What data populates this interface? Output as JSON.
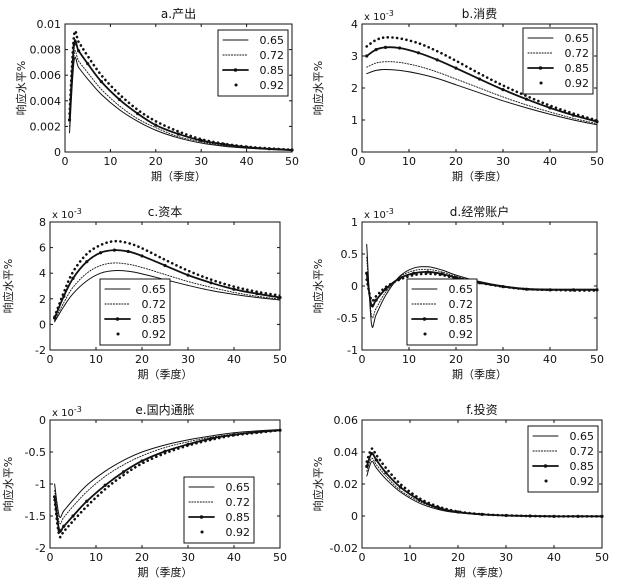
{
  "chart_data": [
    {
      "type": "line",
      "title": "a.产出",
      "xlabel": "期（季度）",
      "ylabel": "响应水平%",
      "exponent": "",
      "xlim": [
        0,
        50
      ],
      "ylim": [
        0,
        0.01
      ],
      "xticks": [
        0,
        10,
        20,
        30,
        40,
        50
      ],
      "yticks": [
        0,
        0.002,
        0.004,
        0.006,
        0.008,
        0.01
      ],
      "ytick_labels": [
        "0",
        "0.002",
        "0.004",
        "0.006",
        "0.008",
        "0.01"
      ],
      "legend": "top-right",
      "series": [
        {
          "name": "0.65",
          "style": "solid",
          "x": [
            1,
            2,
            3,
            5,
            8,
            12,
            16,
            20,
            25,
            30,
            35,
            40,
            45,
            50
          ],
          "y": [
            0.0015,
            0.0071,
            0.0066,
            0.0057,
            0.0045,
            0.0033,
            0.0024,
            0.0017,
            0.0011,
            0.0007,
            0.00045,
            0.0003,
            0.0002,
            0.00012
          ]
        },
        {
          "name": "0.72",
          "style": "dotted",
          "x": [
            1,
            2,
            3,
            5,
            8,
            12,
            16,
            20,
            25,
            30,
            35,
            40,
            45,
            50
          ],
          "y": [
            0.002,
            0.0076,
            0.0071,
            0.0062,
            0.0049,
            0.0036,
            0.0026,
            0.0019,
            0.0012,
            0.0008,
            0.0005,
            0.00033,
            0.00022,
            0.00014
          ]
        },
        {
          "name": "0.85",
          "style": "marker",
          "x": [
            1,
            2,
            3,
            5,
            8,
            12,
            16,
            20,
            25,
            30,
            35,
            40,
            45,
            50
          ],
          "y": [
            0.0025,
            0.0084,
            0.0079,
            0.0069,
            0.0055,
            0.0041,
            0.003,
            0.0021,
            0.0014,
            0.0009,
            0.0006,
            0.00038,
            0.00025,
            0.00016
          ]
        },
        {
          "name": "0.92",
          "style": "dots",
          "x": [
            1,
            2,
            3,
            5,
            8,
            12,
            16,
            20,
            25,
            30,
            35,
            40,
            45,
            50
          ],
          "y": [
            0.003,
            0.0091,
            0.0086,
            0.0075,
            0.006,
            0.0045,
            0.0033,
            0.0024,
            0.0016,
            0.001,
            0.00065,
            0.00042,
            0.00028,
            0.00018
          ]
        }
      ]
    },
    {
      "type": "line",
      "title": "b.消费",
      "xlabel": "期（季度）",
      "ylabel": "响应水平%",
      "exponent": "x 10",
      "exponent_power": "-3",
      "xlim": [
        0,
        50
      ],
      "ylim": [
        0,
        4
      ],
      "xticks": [
        0,
        10,
        20,
        30,
        40,
        50
      ],
      "yticks": [
        0,
        1,
        2,
        3,
        4
      ],
      "ytick_labels": [
        "0",
        "1",
        "2",
        "3",
        "4"
      ],
      "legend": "top-right",
      "series": [
        {
          "name": "0.65",
          "style": "solid",
          "x": [
            1,
            3,
            5,
            8,
            12,
            16,
            20,
            25,
            30,
            35,
            40,
            45,
            50
          ],
          "y": [
            2.45,
            2.55,
            2.58,
            2.55,
            2.45,
            2.3,
            2.1,
            1.85,
            1.6,
            1.38,
            1.18,
            1.0,
            0.85
          ]
        },
        {
          "name": "0.72",
          "style": "dotted",
          "x": [
            1,
            3,
            5,
            8,
            12,
            16,
            20,
            25,
            30,
            35,
            40,
            45,
            50
          ],
          "y": [
            2.65,
            2.78,
            2.82,
            2.8,
            2.68,
            2.5,
            2.28,
            2.0,
            1.72,
            1.47,
            1.25,
            1.05,
            0.89
          ]
        },
        {
          "name": "0.85",
          "style": "marker",
          "x": [
            1,
            3,
            5,
            8,
            12,
            16,
            20,
            25,
            30,
            35,
            40,
            45,
            50
          ],
          "y": [
            3.0,
            3.2,
            3.27,
            3.25,
            3.1,
            2.88,
            2.62,
            2.28,
            1.95,
            1.65,
            1.38,
            1.15,
            0.95
          ]
        },
        {
          "name": "0.92",
          "style": "dots",
          "x": [
            1,
            3,
            5,
            8,
            12,
            16,
            20,
            25,
            30,
            35,
            40,
            45,
            50
          ],
          "y": [
            3.3,
            3.5,
            3.58,
            3.55,
            3.4,
            3.15,
            2.85,
            2.45,
            2.08,
            1.75,
            1.45,
            1.2,
            0.99
          ]
        }
      ]
    },
    {
      "type": "line",
      "title": "c.资本",
      "xlabel": "期（季度）",
      "ylabel": "响应水平%",
      "exponent": "x 10",
      "exponent_power": "-3",
      "xlim": [
        0,
        50
      ],
      "ylim": [
        -2,
        8
      ],
      "xticks": [
        0,
        10,
        20,
        30,
        40,
        50
      ],
      "yticks": [
        -2,
        0,
        2,
        4,
        6,
        8
      ],
      "ytick_labels": [
        "-2",
        "0",
        "2",
        "4",
        "6",
        "8"
      ],
      "legend": "bottom-left",
      "series": [
        {
          "name": "0.65",
          "style": "solid",
          "x": [
            1,
            3,
            5,
            8,
            11,
            14,
            17,
            20,
            25,
            30,
            35,
            40,
            45,
            50
          ],
          "y": [
            0.2,
            1.4,
            2.4,
            3.4,
            4.0,
            4.2,
            4.15,
            3.95,
            3.5,
            3.05,
            2.65,
            2.35,
            2.1,
            1.9
          ]
        },
        {
          "name": "0.72",
          "style": "dotted",
          "x": [
            1,
            3,
            5,
            8,
            11,
            14,
            17,
            20,
            25,
            30,
            35,
            40,
            45,
            50
          ],
          "y": [
            0.3,
            1.7,
            2.9,
            4.0,
            4.6,
            4.8,
            4.7,
            4.45,
            3.9,
            3.35,
            2.9,
            2.5,
            2.2,
            1.97
          ]
        },
        {
          "name": "0.85",
          "style": "marker",
          "x": [
            1,
            3,
            5,
            8,
            11,
            14,
            17,
            20,
            25,
            30,
            35,
            40,
            45,
            50
          ],
          "y": [
            0.5,
            2.2,
            3.6,
            4.9,
            5.6,
            5.8,
            5.7,
            5.35,
            4.6,
            3.85,
            3.25,
            2.75,
            2.4,
            2.1
          ]
        },
        {
          "name": "0.92",
          "style": "dots",
          "x": [
            1,
            3,
            5,
            8,
            11,
            14,
            17,
            20,
            25,
            30,
            35,
            40,
            45,
            50
          ],
          "y": [
            0.6,
            2.5,
            4.1,
            5.5,
            6.2,
            6.5,
            6.35,
            5.95,
            5.05,
            4.2,
            3.5,
            2.95,
            2.55,
            2.25
          ]
        }
      ]
    },
    {
      "type": "line",
      "title": "d.经常账户",
      "xlabel": "期（季度）",
      "ylabel": "响应水平%",
      "exponent": "x 10",
      "exponent_power": "-3",
      "xlim": [
        0,
        50
      ],
      "ylim": [
        -1,
        1
      ],
      "xticks": [
        0,
        10,
        20,
        30,
        40,
        50
      ],
      "yticks": [
        -1,
        -0.5,
        0,
        0.5,
        1
      ],
      "ytick_labels": [
        "-1",
        "-0.5",
        "0",
        "0.5",
        "1"
      ],
      "legend": "bottom-left",
      "series": [
        {
          "name": "0.65",
          "style": "solid",
          "x": [
            1,
            2,
            3,
            5,
            8,
            11,
            14,
            17,
            20,
            25,
            30,
            35,
            40,
            45,
            50
          ],
          "y": [
            0.65,
            -0.58,
            -0.45,
            -0.15,
            0.15,
            0.28,
            0.3,
            0.25,
            0.17,
            0.07,
            0.0,
            -0.04,
            -0.05,
            -0.05,
            -0.05
          ]
        },
        {
          "name": "0.72",
          "style": "dotted",
          "x": [
            1,
            2,
            3,
            5,
            8,
            11,
            14,
            17,
            20,
            25,
            30,
            35,
            40,
            45,
            50
          ],
          "y": [
            0.45,
            -0.45,
            -0.35,
            -0.1,
            0.14,
            0.24,
            0.26,
            0.22,
            0.15,
            0.06,
            0.0,
            -0.04,
            -0.05,
            -0.05,
            -0.05
          ]
        },
        {
          "name": "0.85",
          "style": "marker",
          "x": [
            1,
            2,
            3,
            5,
            8,
            11,
            14,
            17,
            20,
            25,
            30,
            35,
            40,
            45,
            50
          ],
          "y": [
            0.2,
            -0.3,
            -0.22,
            -0.05,
            0.12,
            0.2,
            0.22,
            0.19,
            0.13,
            0.05,
            -0.01,
            -0.05,
            -0.06,
            -0.06,
            -0.06
          ]
        },
        {
          "name": "0.92",
          "style": "dots",
          "x": [
            1,
            2,
            3,
            5,
            8,
            11,
            14,
            17,
            20,
            25,
            30,
            35,
            40,
            45,
            50
          ],
          "y": [
            0.1,
            -0.22,
            -0.16,
            -0.02,
            0.1,
            0.17,
            0.19,
            0.17,
            0.12,
            0.05,
            -0.01,
            -0.05,
            -0.06,
            -0.07,
            -0.07
          ]
        }
      ]
    },
    {
      "type": "line",
      "title": "e.国内通胀",
      "xlabel": "期（季度）",
      "ylabel": "响应水平%",
      "exponent": "x 10",
      "exponent_power": "-3",
      "xlim": [
        0,
        50
      ],
      "ylim": [
        -2,
        0
      ],
      "xticks": [
        0,
        10,
        20,
        30,
        40,
        50
      ],
      "yticks": [
        -2,
        -1.5,
        -1,
        -0.5,
        0
      ],
      "ytick_labels": [
        "-2",
        "-1.5",
        "-1",
        "-0.5",
        "0"
      ],
      "legend": "bottom-right",
      "series": [
        {
          "name": "0.65",
          "style": "solid",
          "x": [
            1,
            2,
            3,
            5,
            8,
            12,
            16,
            20,
            25,
            30,
            35,
            40,
            45,
            50
          ],
          "y": [
            -1.0,
            -1.5,
            -1.42,
            -1.25,
            -1.02,
            -0.8,
            -0.63,
            -0.5,
            -0.39,
            -0.31,
            -0.25,
            -0.2,
            -0.17,
            -0.15
          ]
        },
        {
          "name": "0.72",
          "style": "dotted",
          "x": [
            1,
            2,
            3,
            5,
            8,
            12,
            16,
            20,
            25,
            30,
            35,
            40,
            45,
            50
          ],
          "y": [
            -1.1,
            -1.6,
            -1.52,
            -1.35,
            -1.12,
            -0.88,
            -0.7,
            -0.56,
            -0.43,
            -0.34,
            -0.27,
            -0.22,
            -0.18,
            -0.15
          ]
        },
        {
          "name": "0.85",
          "style": "marker",
          "x": [
            1,
            2,
            3,
            5,
            8,
            12,
            16,
            20,
            25,
            30,
            35,
            40,
            45,
            50
          ],
          "y": [
            -1.2,
            -1.72,
            -1.66,
            -1.5,
            -1.27,
            -1.02,
            -0.81,
            -0.64,
            -0.49,
            -0.38,
            -0.29,
            -0.23,
            -0.19,
            -0.16
          ]
        },
        {
          "name": "0.92",
          "style": "dots",
          "x": [
            1,
            2,
            3,
            5,
            8,
            12,
            16,
            20,
            25,
            30,
            35,
            40,
            45,
            50
          ],
          "y": [
            -1.25,
            -1.8,
            -1.74,
            -1.58,
            -1.35,
            -1.08,
            -0.86,
            -0.68,
            -0.52,
            -0.4,
            -0.31,
            -0.24,
            -0.2,
            -0.16
          ]
        }
      ]
    },
    {
      "type": "line",
      "title": "f.投资",
      "xlabel": "期（季度）",
      "ylabel": "响应水平%",
      "exponent": "",
      "xlim": [
        0,
        50
      ],
      "ylim": [
        -0.02,
        0.06
      ],
      "xticks": [
        0,
        10,
        20,
        30,
        40,
        50
      ],
      "yticks": [
        -0.02,
        0,
        0.02,
        0.04,
        0.06
      ],
      "ytick_labels": [
        "-0.02",
        "0",
        "0.02",
        "0.04",
        "0.06"
      ],
      "legend": "top-right",
      "series": [
        {
          "name": "0.65",
          "style": "solid",
          "x": [
            1,
            2,
            3,
            5,
            8,
            12,
            16,
            20,
            25,
            30,
            35,
            40,
            45,
            50
          ],
          "y": [
            0.025,
            0.034,
            0.03,
            0.023,
            0.015,
            0.008,
            0.004,
            0.002,
            0.0008,
            0.0002,
            0.0,
            -0.0002,
            -0.0002,
            -0.0002
          ]
        },
        {
          "name": "0.72",
          "style": "dotted",
          "x": [
            1,
            2,
            3,
            5,
            8,
            12,
            16,
            20,
            25,
            30,
            35,
            40,
            45,
            50
          ],
          "y": [
            0.028,
            0.036,
            0.032,
            0.025,
            0.016,
            0.009,
            0.0045,
            0.0022,
            0.0009,
            0.0003,
            0.0,
            -0.0002,
            -0.0002,
            -0.0002
          ]
        },
        {
          "name": "0.85",
          "style": "marker",
          "x": [
            1,
            2,
            3,
            5,
            8,
            12,
            16,
            20,
            25,
            30,
            35,
            40,
            45,
            50
          ],
          "y": [
            0.031,
            0.039,
            0.035,
            0.027,
            0.018,
            0.01,
            0.005,
            0.0025,
            0.001,
            0.0003,
            0.0,
            -0.0002,
            -0.0002,
            -0.0002
          ]
        },
        {
          "name": "0.92",
          "style": "dots",
          "x": [
            1,
            2,
            3,
            5,
            8,
            12,
            16,
            20,
            25,
            30,
            35,
            40,
            45,
            50
          ],
          "y": [
            0.034,
            0.042,
            0.038,
            0.03,
            0.02,
            0.011,
            0.0058,
            0.0028,
            0.0011,
            0.0004,
            0.0,
            -0.0002,
            -0.0002,
            -0.0002
          ]
        }
      ]
    }
  ]
}
